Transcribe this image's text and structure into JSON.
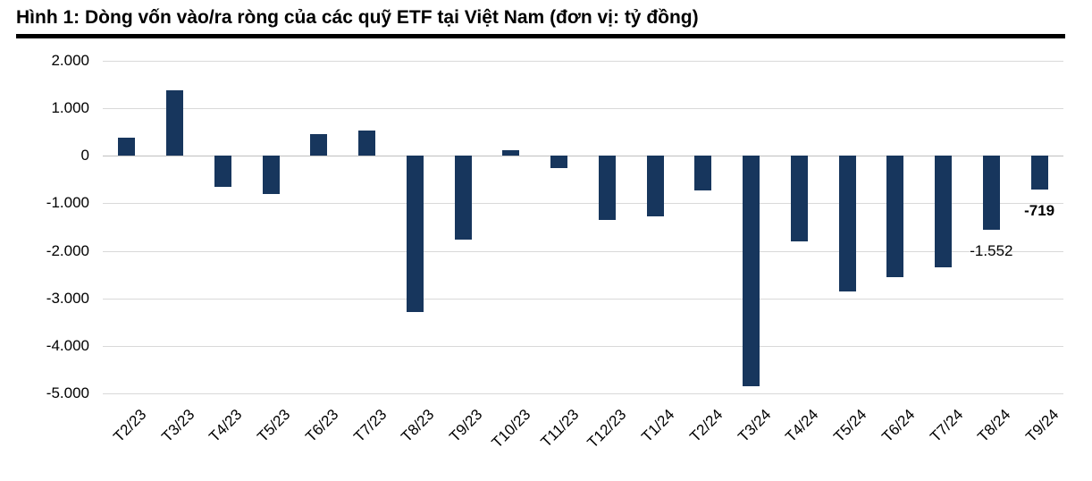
{
  "title": "Hình 1: Dòng vốn vào/ra ròng của các quỹ ETF tại Việt Nam (đơn vị: tỷ đồng)",
  "chart_data": {
    "type": "bar",
    "title": "Hình 1: Dòng vốn vào/ra ròng của các quỹ ETF tại Việt Nam (đơn vị: tỷ đồng)",
    "unit": "tỷ đồng",
    "xlabel": "",
    "ylabel": "",
    "ylim": [
      -5000,
      2000
    ],
    "grid": true,
    "legend": "none",
    "bar_color": "#17365d",
    "categories": [
      "T2/23",
      "T3/23",
      "T4/23",
      "T5/23",
      "T6/23",
      "T7/23",
      "T8/23",
      "T9/23",
      "T10/23",
      "T11/23",
      "T12/23",
      "T1/24",
      "T2/24",
      "T3/24",
      "T4/24",
      "T5/24",
      "T6/24",
      "T7/24",
      "T8/24",
      "T9/24"
    ],
    "values": [
      380,
      1380,
      -650,
      -800,
      450,
      530,
      -3280,
      -1760,
      120,
      -250,
      -1350,
      -1270,
      -720,
      -4850,
      -1800,
      -2850,
      -2550,
      -2350,
      -1552,
      -719
    ],
    "yticks": [
      {
        "label": "2.000",
        "value": 2000
      },
      {
        "label": "1.000",
        "value": 1000
      },
      {
        "label": "0",
        "value": 0
      },
      {
        "label": "-1.000",
        "value": -1000
      },
      {
        "label": "-2.000",
        "value": -2000
      },
      {
        "label": "-3.000",
        "value": -3000
      },
      {
        "label": "-4.000",
        "value": -4000
      },
      {
        "label": "-5.000",
        "value": -5000
      }
    ],
    "annotations": [
      {
        "category": "T8/24",
        "text": "-1.552",
        "bold": false
      },
      {
        "category": "T9/24",
        "text": "-719",
        "bold": true
      }
    ]
  }
}
